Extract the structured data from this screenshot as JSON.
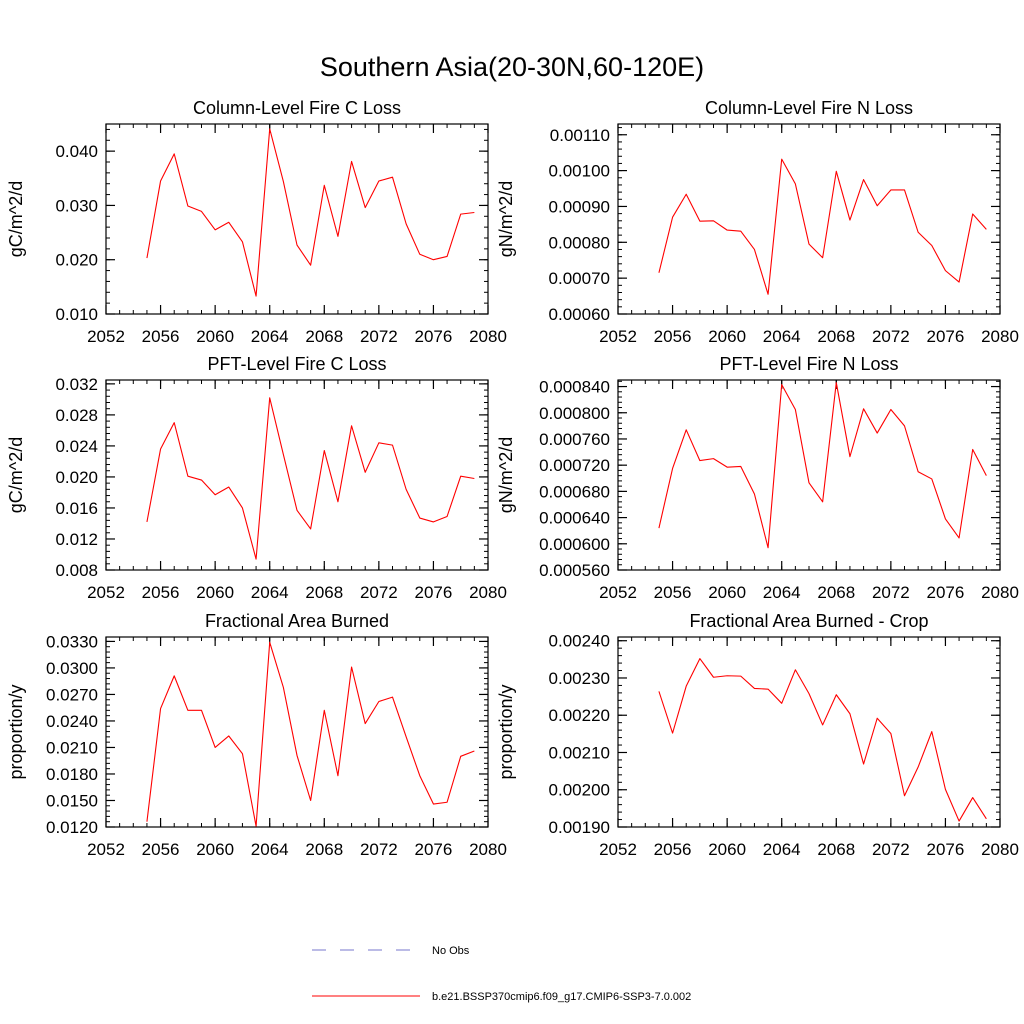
{
  "figure_title": "Southern Asia(20-30N,60-120E)",
  "legend": {
    "items": [
      {
        "label": "No Obs",
        "color": "#7777cc",
        "dashed": true
      },
      {
        "label": "b.e21.BSSP370cmip6.f09_g17.CMIP6-SSP3-7.0.002",
        "color": "#ff0000",
        "dashed": false
      }
    ]
  },
  "colors": {
    "series": "#ff0000",
    "axis": "#000000"
  },
  "chart_data": [
    {
      "type": "line",
      "title": "Column-Level Fire C Loss",
      "xlabel": "",
      "ylabel": "gC/m^2/d",
      "xlim": [
        2052,
        2080
      ],
      "ylim": [
        0.01,
        0.045
      ],
      "xticks": [
        2052,
        2056,
        2060,
        2064,
        2068,
        2072,
        2076,
        2080
      ],
      "xtick_labels": [
        "2052",
        "2056",
        "2060",
        "2064",
        "2068",
        "2072",
        "2076",
        "2080"
      ],
      "yticks": [
        0.01,
        0.02,
        0.03,
        0.04
      ],
      "ytick_labels": [
        "0.010",
        "0.020",
        "0.030",
        "0.040"
      ],
      "x": [
        2055,
        2056,
        2057,
        2058,
        2059,
        2060,
        2061,
        2062,
        2063,
        2064,
        2065,
        2066,
        2067,
        2068,
        2069,
        2070,
        2071,
        2072,
        2073,
        2074,
        2075,
        2076,
        2077,
        2078,
        2079
      ],
      "series": [
        {
          "values": [
            0.0203,
            0.0345,
            0.0395,
            0.0299,
            0.0289,
            0.0255,
            0.0269,
            0.0233,
            0.0133,
            0.0441,
            0.0344,
            0.0227,
            0.019,
            0.0337,
            0.0243,
            0.0381,
            0.0296,
            0.0345,
            0.0352,
            0.0266,
            0.021,
            0.02,
            0.0206,
            0.0284,
            0.0287
          ]
        }
      ]
    },
    {
      "type": "line",
      "title": "Column-Level Fire N Loss",
      "xlabel": "",
      "ylabel": "gN/m^2/d",
      "xlim": [
        2052,
        2080
      ],
      "ylim": [
        0.0006,
        0.00113
      ],
      "xticks": [
        2052,
        2056,
        2060,
        2064,
        2068,
        2072,
        2076,
        2080
      ],
      "xtick_labels": [
        "2052",
        "2056",
        "2060",
        "2064",
        "2068",
        "2072",
        "2076",
        "2080"
      ],
      "yticks": [
        0.0006,
        0.0007,
        0.0008,
        0.0009,
        0.001,
        0.0011
      ],
      "ytick_labels": [
        "0.00060",
        "0.00070",
        "0.00080",
        "0.00090",
        "0.00100",
        "0.00110"
      ],
      "x": [
        2055,
        2056,
        2057,
        2058,
        2059,
        2060,
        2061,
        2062,
        2063,
        2064,
        2065,
        2066,
        2067,
        2068,
        2069,
        2070,
        2071,
        2072,
        2073,
        2074,
        2075,
        2076,
        2077,
        2078,
        2079
      ],
      "series": [
        {
          "values": [
            0.000715,
            0.00087,
            0.000934,
            0.000859,
            0.00086,
            0.000834,
            0.000831,
            0.00078,
            0.000655,
            0.001032,
            0.000963,
            0.000795,
            0.000757,
            0.000998,
            0.000862,
            0.000975,
            0.000902,
            0.000946,
            0.000946,
            0.000828,
            0.000791,
            0.000721,
            0.000689,
            0.000879,
            0.000836
          ]
        }
      ]
    },
    {
      "type": "line",
      "title": "PFT-Level Fire C Loss",
      "xlabel": "",
      "ylabel": "gC/m^2/d",
      "xlim": [
        2052,
        2080
      ],
      "ylim": [
        0.008,
        0.0325
      ],
      "xticks": [
        2052,
        2056,
        2060,
        2064,
        2068,
        2072,
        2076,
        2080
      ],
      "xtick_labels": [
        "2052",
        "2056",
        "2060",
        "2064",
        "2068",
        "2072",
        "2076",
        "2080"
      ],
      "yticks": [
        0.008,
        0.012,
        0.016,
        0.02,
        0.024,
        0.028,
        0.032
      ],
      "ytick_labels": [
        "0.008",
        "0.012",
        "0.016",
        "0.020",
        "0.024",
        "0.028",
        "0.032"
      ],
      "x": [
        2055,
        2056,
        2057,
        2058,
        2059,
        2060,
        2061,
        2062,
        2063,
        2064,
        2065,
        2066,
        2067,
        2068,
        2069,
        2070,
        2071,
        2072,
        2073,
        2074,
        2075,
        2076,
        2077,
        2078,
        2079
      ],
      "series": [
        {
          "values": [
            0.0142,
            0.0236,
            0.027,
            0.0201,
            0.0196,
            0.0177,
            0.0187,
            0.016,
            0.0094,
            0.0302,
            0.0229,
            0.0157,
            0.0133,
            0.0234,
            0.0168,
            0.0266,
            0.0206,
            0.0244,
            0.0241,
            0.0184,
            0.0147,
            0.0142,
            0.0149,
            0.0201,
            0.0198
          ]
        }
      ]
    },
    {
      "type": "line",
      "title": "PFT-Level Fire N Loss",
      "xlabel": "",
      "ylabel": "gN/m^2/d",
      "xlim": [
        2052,
        2080
      ],
      "ylim": [
        0.00056,
        0.00085
      ],
      "xticks": [
        2052,
        2056,
        2060,
        2064,
        2068,
        2072,
        2076,
        2080
      ],
      "xtick_labels": [
        "2052",
        "2056",
        "2060",
        "2064",
        "2068",
        "2072",
        "2076",
        "2080"
      ],
      "yticks": [
        0.00056,
        0.0006,
        0.00064,
        0.00068,
        0.00072,
        0.00076,
        0.0008,
        0.00084
      ],
      "ytick_labels": [
        "0.000560",
        "0.000600",
        "0.000640",
        "0.000680",
        "0.000720",
        "0.000760",
        "0.000800",
        "0.000840"
      ],
      "x": [
        2055,
        2056,
        2057,
        2058,
        2059,
        2060,
        2061,
        2062,
        2063,
        2064,
        2065,
        2066,
        2067,
        2068,
        2069,
        2070,
        2071,
        2072,
        2073,
        2074,
        2075,
        2076,
        2077,
        2078,
        2079
      ],
      "series": [
        {
          "values": [
            0.000624,
            0.000715,
            0.000774,
            0.000727,
            0.00073,
            0.000717,
            0.000718,
            0.000676,
            0.000594,
            0.000843,
            0.000805,
            0.000693,
            0.000664,
            0.000846,
            0.000733,
            0.000806,
            0.000769,
            0.000805,
            0.00078,
            0.00071,
            0.000699,
            0.000638,
            0.000609,
            0.000744,
            0.000704
          ]
        }
      ]
    },
    {
      "type": "line",
      "title": "Fractional Area Burned",
      "xlabel": "",
      "ylabel": "proportion/y",
      "xlim": [
        2052,
        2080
      ],
      "ylim": [
        0.012,
        0.0335
      ],
      "xticks": [
        2052,
        2056,
        2060,
        2064,
        2068,
        2072,
        2076,
        2080
      ],
      "xtick_labels": [
        "2052",
        "2056",
        "2060",
        "2064",
        "2068",
        "2072",
        "2076",
        "2080"
      ],
      "yticks": [
        0.012,
        0.015,
        0.018,
        0.021,
        0.024,
        0.027,
        0.03,
        0.033
      ],
      "ytick_labels": [
        "0.0120",
        "0.0150",
        "0.0180",
        "0.0210",
        "0.0240",
        "0.0270",
        "0.0300",
        "0.0330"
      ],
      "x": [
        2055,
        2056,
        2057,
        2058,
        2059,
        2060,
        2061,
        2062,
        2063,
        2064,
        2065,
        2066,
        2067,
        2068,
        2069,
        2070,
        2071,
        2072,
        2073,
        2074,
        2075,
        2076,
        2077,
        2078,
        2079
      ],
      "series": [
        {
          "values": [
            0.0126,
            0.0254,
            0.0291,
            0.0252,
            0.0252,
            0.021,
            0.0223,
            0.0203,
            0.0121,
            0.0329,
            0.0278,
            0.0201,
            0.015,
            0.0252,
            0.0178,
            0.0301,
            0.0237,
            0.0262,
            0.0267,
            0.0222,
            0.0178,
            0.0146,
            0.0148,
            0.02,
            0.0206
          ]
        }
      ]
    },
    {
      "type": "line",
      "title": "Fractional Area Burned - Crop",
      "xlabel": "",
      "ylabel": "proportion/y",
      "xlim": [
        2052,
        2080
      ],
      "ylim": [
        0.0019,
        0.00241
      ],
      "xticks": [
        2052,
        2056,
        2060,
        2064,
        2068,
        2072,
        2076,
        2080
      ],
      "xtick_labels": [
        "2052",
        "2056",
        "2060",
        "2064",
        "2068",
        "2072",
        "2076",
        "2080"
      ],
      "yticks": [
        0.0019,
        0.002,
        0.0021,
        0.0022,
        0.0023,
        0.0024
      ],
      "ytick_labels": [
        "0.00190",
        "0.00200",
        "0.00210",
        "0.00220",
        "0.00230",
        "0.00240"
      ],
      "x": [
        2055,
        2056,
        2057,
        2058,
        2059,
        2060,
        2061,
        2062,
        2063,
        2064,
        2065,
        2066,
        2067,
        2068,
        2069,
        2070,
        2071,
        2072,
        2073,
        2074,
        2075,
        2076,
        2077,
        2078,
        2079
      ],
      "series": [
        {
          "values": [
            0.002264,
            0.002152,
            0.002278,
            0.002352,
            0.002302,
            0.002306,
            0.002305,
            0.002272,
            0.00227,
            0.002232,
            0.002322,
            0.002258,
            0.002174,
            0.002255,
            0.002204,
            0.002069,
            0.002192,
            0.002151,
            0.001984,
            0.002061,
            0.002156,
            0.002001,
            0.001916,
            0.001979,
            0.001922
          ]
        }
      ]
    }
  ]
}
